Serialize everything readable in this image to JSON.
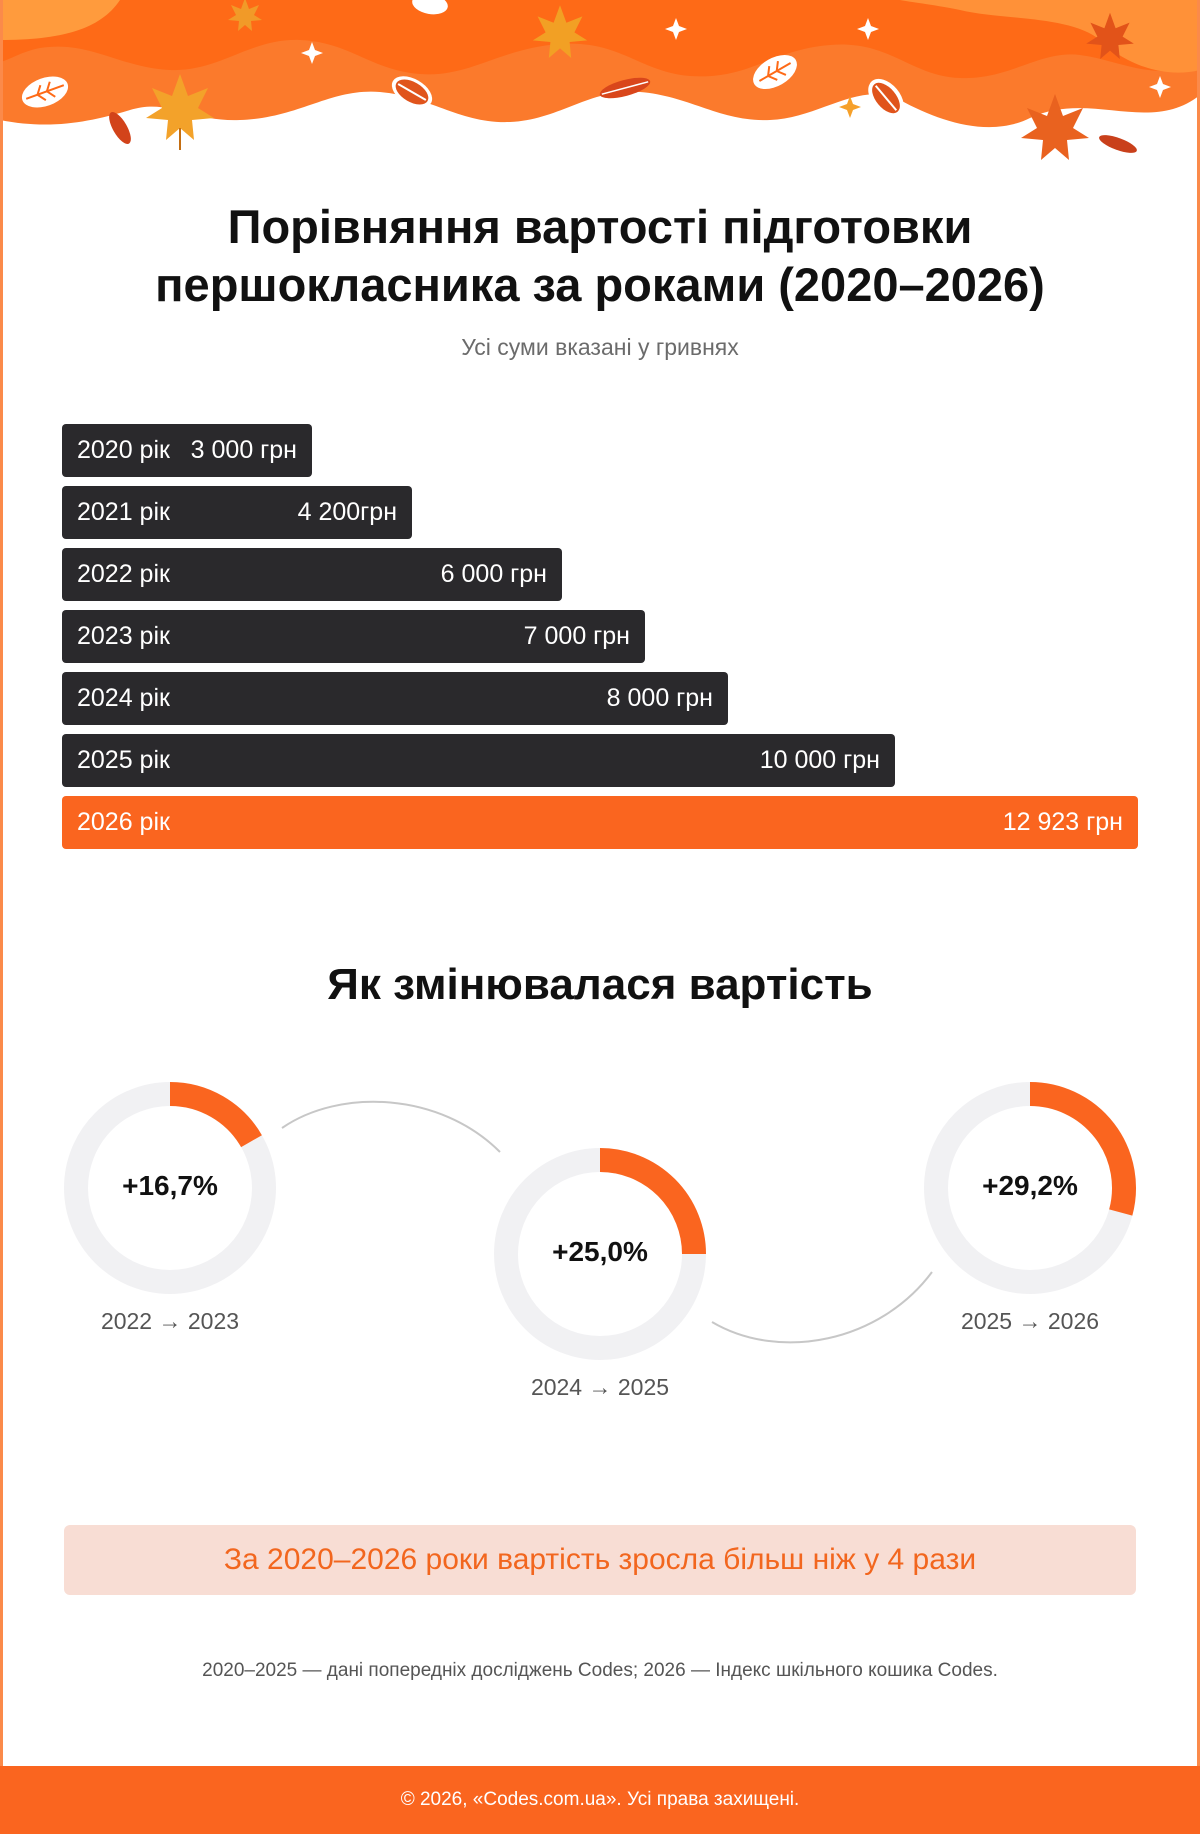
{
  "title": {
    "line1": "Порівняння вартості підготовки",
    "line2": "першокласника за роками (2020–2026)"
  },
  "subtitle": "Усі суми вказані у гривнях",
  "colors": {
    "bar_default": "#2a292c",
    "bar_highlight": "#fa651f",
    "accent": "#fa651f",
    "ring_track": "#f1f1f3",
    "conclusion_bg": "#f8ddd4",
    "conclusion_text": "#f2661e"
  },
  "chart_data": [
    {
      "type": "bar",
      "orientation": "horizontal",
      "title": "Порівняння вартості підготовки першокласника за роками (2020–2026)",
      "subtitle": "Усі суми вказані у гривнях",
      "categories": [
        "2020 рік",
        "2021 рік",
        "2022 рік",
        "2023 рік",
        "2024 рік",
        "2025 рік",
        "2026 рік"
      ],
      "values": [
        3000,
        4200,
        6000,
        7000,
        8000,
        10000,
        12923
      ],
      "value_labels": [
        "3 000 грн",
        "4 200грн",
        "6 000 грн",
        "7 000 грн",
        "8 000 грн",
        "10 000 грн",
        "12 923 грн"
      ],
      "highlight_index": 6,
      "xlim": [
        0,
        12923
      ]
    },
    {
      "type": "pie",
      "subtype": "donut",
      "title": "Як змінювалася вартість",
      "items": [
        {
          "label": "+16,7%",
          "value": 16.7,
          "period": "2022 → 2023"
        },
        {
          "label": "+25,0%",
          "value": 25.0,
          "period": "2024 → 2025"
        },
        {
          "label": "+29,2%",
          "value": 29.2,
          "period": "2025 → 2026"
        }
      ]
    }
  ],
  "section_title": "Як змінювалася вартість",
  "conclusion": "За 2020–2026 роки вартість зросла більш ніж у 4 рази",
  "source_note": "2020–2025 — дані попередніх досліджень Codes; 2026 — Індекс шкільного кошика Codes.",
  "footer": "© 2026, «Codes.com.ua». Усі права захищені."
}
